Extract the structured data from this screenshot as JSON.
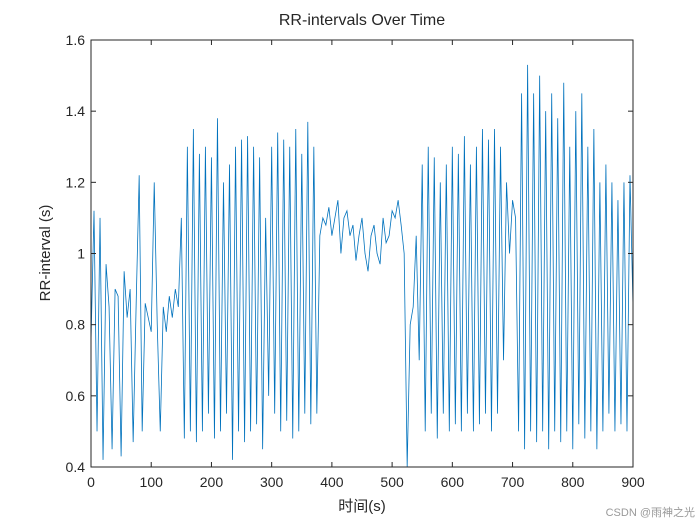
{
  "chart_data": {
    "type": "line",
    "title": "RR-intervals Over Time",
    "xlabel": "时间(s)",
    "ylabel": "RR-interval (s)",
    "watermark": "CSDN @雨神之光",
    "x": [
      0,
      5,
      10,
      15,
      20,
      25,
      30,
      35,
      40,
      45,
      50,
      55,
      60,
      65,
      70,
      75,
      80,
      85,
      90,
      95,
      100,
      105,
      110,
      115,
      120,
      125,
      130,
      135,
      140,
      145,
      150,
      155,
      160,
      165,
      170,
      175,
      180,
      185,
      190,
      195,
      200,
      205,
      210,
      215,
      220,
      225,
      230,
      235,
      240,
      245,
      250,
      255,
      260,
      265,
      270,
      275,
      280,
      285,
      290,
      295,
      300,
      305,
      310,
      315,
      320,
      325,
      330,
      335,
      340,
      345,
      350,
      355,
      360,
      365,
      370,
      375,
      380,
      385,
      390,
      395,
      400,
      405,
      410,
      415,
      420,
      425,
      430,
      435,
      440,
      445,
      450,
      455,
      460,
      465,
      470,
      475,
      480,
      485,
      490,
      495,
      500,
      505,
      510,
      515,
      520,
      525,
      530,
      535,
      540,
      545,
      550,
      555,
      560,
      565,
      570,
      575,
      580,
      585,
      590,
      595,
      600,
      605,
      610,
      615,
      620,
      625,
      630,
      635,
      640,
      645,
      650,
      655,
      660,
      665,
      670,
      675,
      680,
      685,
      690,
      695,
      700,
      705,
      710,
      715,
      720,
      725,
      730,
      735,
      740,
      745,
      750,
      755,
      760,
      765,
      770,
      775,
      780,
      785,
      790,
      795,
      800,
      805,
      810,
      815,
      820,
      825,
      830,
      835,
      840,
      845,
      850,
      855,
      860,
      865,
      870,
      875,
      880,
      885,
      890,
      895,
      900
    ],
    "series": [
      {
        "name": "RR",
        "color": "#0072bd",
        "values": [
          0.75,
          1.12,
          0.5,
          1.1,
          0.42,
          0.97,
          0.85,
          0.45,
          0.9,
          0.88,
          0.43,
          0.95,
          0.82,
          0.9,
          0.47,
          0.86,
          1.22,
          0.5,
          0.86,
          0.82,
          0.78,
          1.2,
          0.8,
          0.5,
          0.85,
          0.78,
          0.88,
          0.82,
          0.9,
          0.85,
          1.1,
          0.48,
          1.3,
          0.5,
          1.35,
          0.47,
          1.28,
          0.5,
          1.3,
          0.55,
          1.27,
          0.48,
          1.38,
          0.5,
          1.2,
          0.55,
          1.25,
          0.42,
          1.3,
          0.5,
          1.32,
          0.47,
          1.33,
          0.5,
          1.3,
          0.52,
          1.27,
          0.45,
          1.1,
          0.6,
          1.3,
          0.55,
          1.34,
          0.5,
          1.32,
          0.53,
          1.3,
          0.48,
          1.35,
          0.5,
          1.28,
          0.55,
          1.37,
          0.52,
          1.3,
          0.55,
          1.05,
          1.1,
          1.08,
          1.13,
          1.05,
          1.1,
          1.15,
          1.0,
          1.1,
          1.12,
          1.05,
          1.08,
          0.98,
          1.05,
          1.1,
          1.0,
          0.95,
          1.05,
          1.08,
          1.0,
          0.97,
          1.1,
          1.03,
          1.05,
          1.12,
          1.1,
          1.15,
          1.08,
          1.0,
          0.4,
          0.8,
          0.85,
          1.05,
          0.7,
          1.25,
          0.5,
          1.3,
          0.55,
          1.27,
          0.48,
          1.2,
          0.55,
          1.25,
          0.5,
          1.3,
          0.52,
          1.28,
          0.5,
          1.33,
          0.55,
          1.25,
          0.5,
          1.3,
          0.52,
          1.35,
          0.55,
          1.32,
          0.5,
          1.35,
          0.55,
          1.3,
          0.7,
          1.2,
          1.0,
          1.15,
          1.1,
          0.5,
          1.45,
          0.45,
          1.53,
          0.5,
          1.45,
          0.47,
          1.5,
          0.5,
          1.4,
          0.45,
          1.45,
          0.5,
          1.38,
          0.47,
          1.48,
          0.5,
          1.3,
          0.45,
          1.4,
          0.52,
          1.45,
          0.48,
          1.3,
          0.5,
          1.35,
          0.45,
          1.2,
          0.5,
          1.25,
          0.55,
          1.2,
          0.5,
          1.15,
          0.52,
          1.2,
          0.5,
          1.22,
          0.85
        ]
      }
    ],
    "xlim": [
      0,
      900
    ],
    "xticks": [
      0,
      100,
      200,
      300,
      400,
      500,
      600,
      700,
      800,
      900
    ],
    "ylim": [
      0.4,
      1.6
    ],
    "yticks": [
      0.4,
      0.6,
      0.8,
      1,
      1.2,
      1.4,
      1.6
    ]
  }
}
